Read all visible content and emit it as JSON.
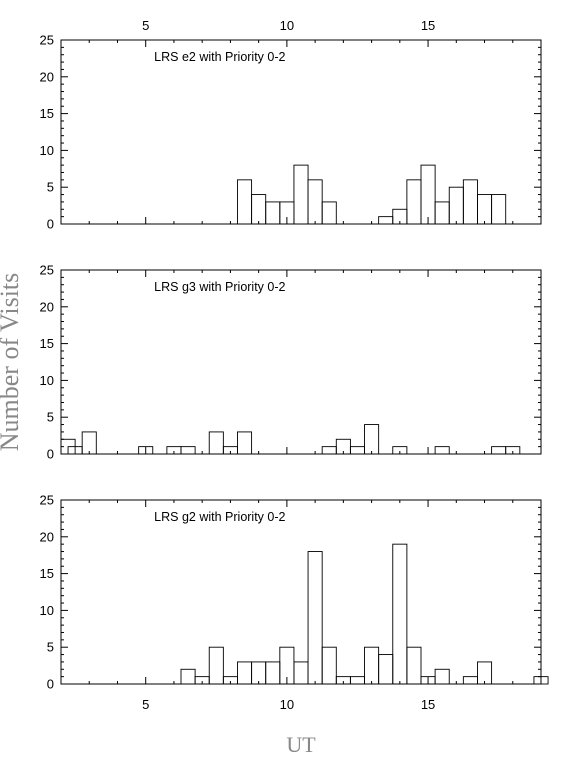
{
  "figure": {
    "ylabel": "Number of Visits",
    "xlabel": "UT"
  },
  "chart_data": [
    {
      "type": "histogram",
      "annotation": "LRS e2 with Priority 0-2",
      "bin_width": 0.5,
      "xlim": [
        2,
        19
      ],
      "ylim": [
        0,
        25
      ],
      "x_ticks": [
        5,
        10,
        15
      ],
      "y_ticks": [
        0,
        5,
        10,
        15,
        20,
        25
      ],
      "x_tick_labels_top": true,
      "x_tick_labels_bottom": false,
      "bins": [
        {
          "x0": 8.25,
          "y": 6
        },
        {
          "x0": 8.75,
          "y": 4
        },
        {
          "x0": 9.25,
          "y": 3
        },
        {
          "x0": 9.75,
          "y": 3
        },
        {
          "x0": 10.25,
          "y": 8
        },
        {
          "x0": 10.75,
          "y": 6
        },
        {
          "x0": 11.25,
          "y": 3
        },
        {
          "x0": 13.25,
          "y": 1
        },
        {
          "x0": 13.75,
          "y": 2
        },
        {
          "x0": 14.25,
          "y": 6
        },
        {
          "x0": 14.75,
          "y": 8
        },
        {
          "x0": 15.25,
          "y": 3
        },
        {
          "x0": 15.75,
          "y": 5
        },
        {
          "x0": 16.25,
          "y": 6
        },
        {
          "x0": 16.75,
          "y": 4
        },
        {
          "x0": 17.25,
          "y": 4
        }
      ]
    },
    {
      "type": "histogram",
      "annotation": "LRS g3 with Priority 0-2",
      "bin_width": 0.5,
      "xlim": [
        2,
        19
      ],
      "ylim": [
        0,
        25
      ],
      "x_ticks": [
        5,
        10,
        15
      ],
      "y_ticks": [
        0,
        5,
        10,
        15,
        20,
        25
      ],
      "x_tick_labels_top": false,
      "x_tick_labels_bottom": false,
      "bins": [
        {
          "x0": 2.0,
          "y": 2
        },
        {
          "x0": 2.25,
          "y": 1
        },
        {
          "x0": 2.75,
          "y": 3
        },
        {
          "x0": 4.75,
          "y": 1
        },
        {
          "x0": 5.25,
          "y": 0
        },
        {
          "x0": 5.75,
          "y": 1
        },
        {
          "x0": 6.25,
          "y": 1
        },
        {
          "x0": 7.25,
          "y": 3
        },
        {
          "x0": 7.75,
          "y": 1
        },
        {
          "x0": 8.25,
          "y": 3
        },
        {
          "x0": 11.25,
          "y": 1
        },
        {
          "x0": 11.75,
          "y": 2
        },
        {
          "x0": 12.25,
          "y": 1
        },
        {
          "x0": 12.75,
          "y": 4
        },
        {
          "x0": 13.75,
          "y": 1
        },
        {
          "x0": 15.25,
          "y": 1
        },
        {
          "x0": 17.25,
          "y": 1
        },
        {
          "x0": 17.75,
          "y": 1
        }
      ]
    },
    {
      "type": "histogram",
      "annotation": "LRS g2 with Priority 0-2",
      "bin_width": 0.5,
      "xlim": [
        2,
        19
      ],
      "ylim": [
        0,
        25
      ],
      "x_ticks": [
        5,
        10,
        15
      ],
      "y_ticks": [
        0,
        5,
        10,
        15,
        20,
        25
      ],
      "x_tick_labels_top": false,
      "x_tick_labels_bottom": true,
      "bins": [
        {
          "x0": 6.25,
          "y": 2
        },
        {
          "x0": 6.75,
          "y": 1
        },
        {
          "x0": 7.25,
          "y": 5
        },
        {
          "x0": 7.75,
          "y": 1
        },
        {
          "x0": 8.25,
          "y": 3
        },
        {
          "x0": 8.75,
          "y": 3
        },
        {
          "x0": 9.25,
          "y": 3
        },
        {
          "x0": 9.75,
          "y": 5
        },
        {
          "x0": 10.25,
          "y": 3
        },
        {
          "x0": 10.75,
          "y": 18
        },
        {
          "x0": 11.25,
          "y": 5
        },
        {
          "x0": 11.75,
          "y": 1
        },
        {
          "x0": 12.25,
          "y": 1
        },
        {
          "x0": 12.75,
          "y": 5
        },
        {
          "x0": 13.25,
          "y": 4
        },
        {
          "x0": 13.75,
          "y": 19
        },
        {
          "x0": 14.25,
          "y": 5
        },
        {
          "x0": 14.75,
          "y": 1
        },
        {
          "x0": 15.25,
          "y": 2
        },
        {
          "x0": 15.75,
          "y": 0
        },
        {
          "x0": 16.25,
          "y": 1
        },
        {
          "x0": 16.75,
          "y": 3
        },
        {
          "x0": 18.75,
          "y": 1
        }
      ]
    }
  ]
}
